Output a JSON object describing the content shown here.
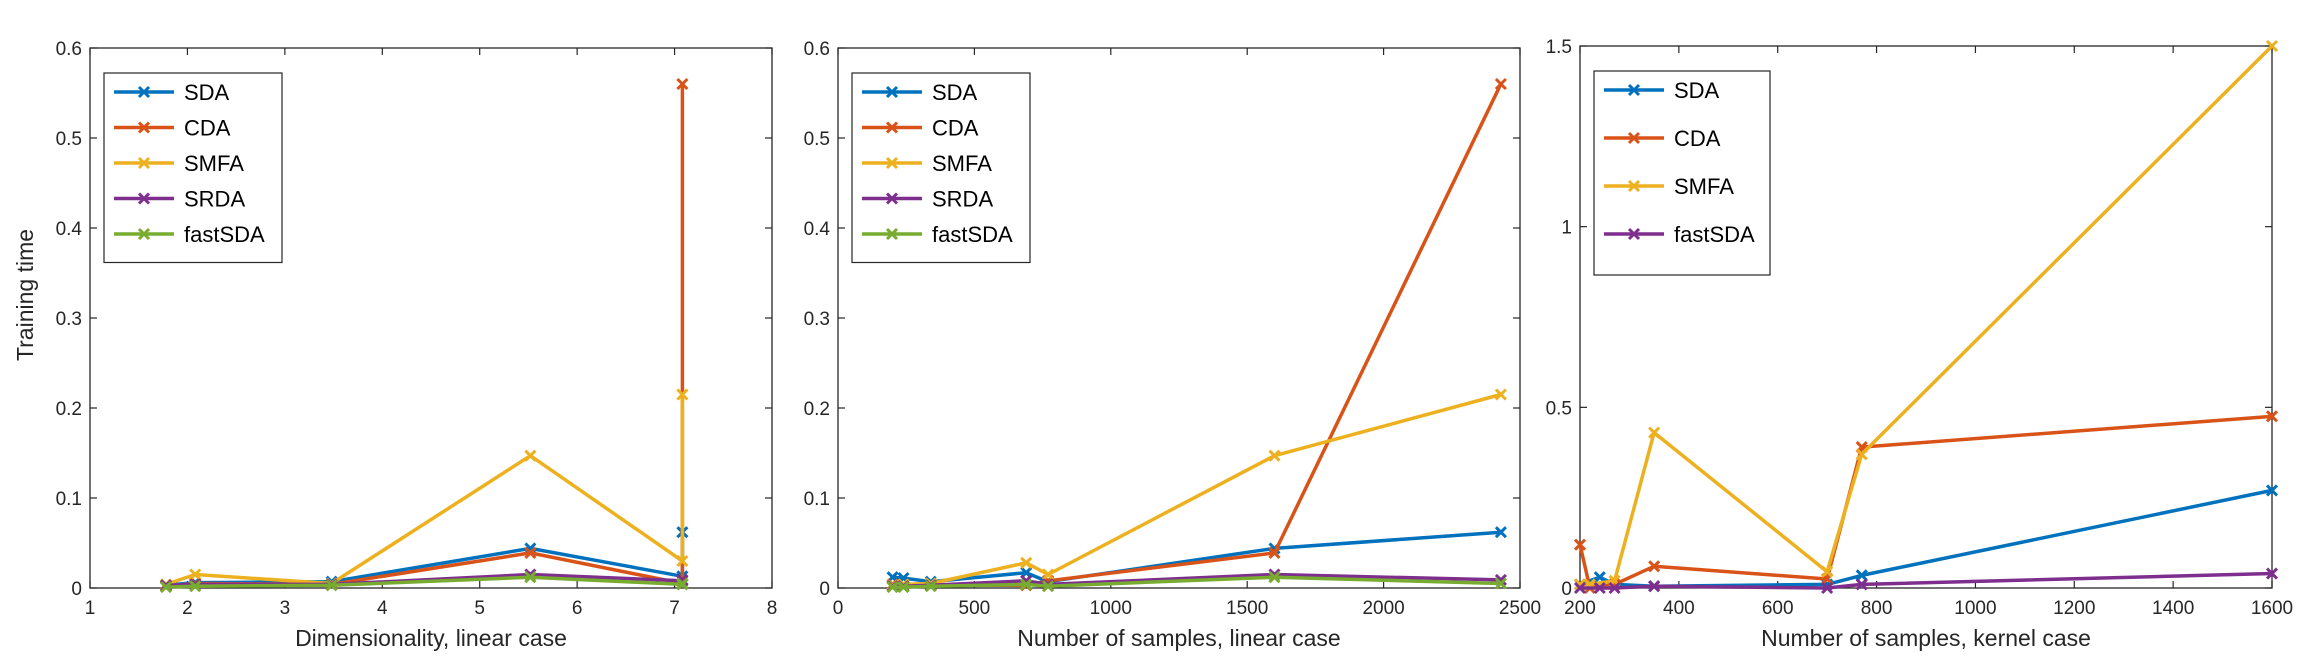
{
  "ylabel": "Training time",
  "chart_data": [
    {
      "type": "line",
      "title": "",
      "xlabel": "Dimensionality, linear case",
      "ylabel": "Training time",
      "xlim": [
        1,
        8
      ],
      "ylim": [
        0,
        0.6
      ],
      "xticks": [
        1,
        2,
        3,
        4,
        5,
        6,
        7,
        8
      ],
      "xtick_labels": [
        "1",
        "2",
        "3",
        "4",
        "5",
        "6",
        "7",
        "8"
      ],
      "yticks": [
        0,
        0.1,
        0.2,
        0.3,
        0.4,
        0.5,
        0.6
      ],
      "ytick_labels": [
        "0",
        "0.1",
        "0.2",
        "0.3",
        "0.4",
        "0.5",
        "0.6"
      ],
      "legend_position": "top-left",
      "series": [
        {
          "name": "SDA",
          "color": "#0072BD",
          "x": [
            1.78,
            2.08,
            3.48,
            5.52,
            7.08,
            7.08
          ],
          "y": [
            0.003,
            0.006,
            0.007,
            0.044,
            0.013,
            0.062
          ]
        },
        {
          "name": "CDA",
          "color": "#D95319",
          "x": [
            1.78,
            2.08,
            3.48,
            5.52,
            7.08,
            7.08
          ],
          "y": [
            0.002,
            0.005,
            0.004,
            0.039,
            0.005,
            0.56
          ]
        },
        {
          "name": "SMFA",
          "color": "#EDB120",
          "x": [
            1.78,
            2.08,
            3.48,
            5.52,
            7.08,
            7.08
          ],
          "y": [
            0.004,
            0.015,
            0.005,
            0.147,
            0.03,
            0.215
          ]
        },
        {
          "name": "SRDA",
          "color": "#7E2F8E",
          "x": [
            1.78,
            2.08,
            3.48,
            5.52,
            7.08,
            7.08
          ],
          "y": [
            0.003,
            0.004,
            0.004,
            0.015,
            0.008,
            0.009
          ]
        },
        {
          "name": "fastSDA",
          "color": "#77AC30",
          "x": [
            1.78,
            2.08,
            3.48,
            5.52,
            7.08,
            7.08
          ],
          "y": [
            0.001,
            0.002,
            0.003,
            0.012,
            0.004,
            0.005
          ]
        }
      ]
    },
    {
      "type": "line",
      "title": "",
      "xlabel": "Number of samples, linear case",
      "ylabel": "",
      "xlim": [
        0,
        2500
      ],
      "ylim": [
        0,
        0.6
      ],
      "xticks": [
        0,
        500,
        1000,
        1500,
        2000,
        2500
      ],
      "xtick_labels": [
        "0",
        "500",
        "1000",
        "1500",
        "2000",
        "2500"
      ],
      "yticks": [
        0,
        0.1,
        0.2,
        0.3,
        0.4,
        0.5,
        0.6
      ],
      "ytick_labels": [
        "0",
        "0.1",
        "0.2",
        "0.3",
        "0.4",
        "0.5",
        "0.6"
      ],
      "legend_position": "top-left",
      "series": [
        {
          "name": "SDA",
          "color": "#0072BD",
          "x": [
            200,
            240,
            340,
            690,
            770,
            1600,
            2430
          ],
          "y": [
            0.012,
            0.011,
            0.007,
            0.017,
            0.007,
            0.044,
            0.062
          ]
        },
        {
          "name": "CDA",
          "color": "#D95319",
          "x": [
            200,
            240,
            340,
            690,
            770,
            1600,
            2430
          ],
          "y": [
            0.004,
            0.004,
            0.003,
            0.003,
            0.008,
            0.039,
            0.56
          ]
        },
        {
          "name": "SMFA",
          "color": "#EDB120",
          "x": [
            200,
            240,
            340,
            690,
            770,
            1600,
            2430
          ],
          "y": [
            0.003,
            0.004,
            0.005,
            0.028,
            0.015,
            0.147,
            0.215
          ]
        },
        {
          "name": "SRDA",
          "color": "#7E2F8E",
          "x": [
            200,
            240,
            340,
            690,
            770,
            1600,
            2430
          ],
          "y": [
            0.002,
            0.002,
            0.003,
            0.008,
            0.004,
            0.015,
            0.009
          ]
        },
        {
          "name": "fastSDA",
          "color": "#77AC30",
          "x": [
            200,
            240,
            340,
            690,
            770,
            1600,
            2430
          ],
          "y": [
            0.001,
            0.001,
            0.002,
            0.004,
            0.002,
            0.012,
            0.005
          ]
        }
      ]
    },
    {
      "type": "line",
      "title": "",
      "xlabel": "Number of samples, kernel case",
      "ylabel": "",
      "xlim": [
        200,
        1600
      ],
      "ylim": [
        0,
        1.5
      ],
      "xticks": [
        200,
        400,
        600,
        800,
        1000,
        1200,
        1400,
        1600
      ],
      "xtick_labels": [
        "200",
        "400",
        "600",
        "800",
        "1000",
        "1200",
        "1400",
        "1600"
      ],
      "yticks": [
        0,
        0.5,
        1,
        1.5
      ],
      "ytick_labels": [
        "0",
        "0.5",
        "1",
        "1.5"
      ],
      "legend_position": "top-left",
      "series": [
        {
          "name": "SDA",
          "color": "#0072BD",
          "x": [
            200,
            240,
            270,
            350,
            700,
            770,
            1600
          ],
          "y": [
            0.01,
            0.03,
            0.01,
            0.005,
            0.01,
            0.035,
            0.27
          ]
        },
        {
          "name": "CDA",
          "color": "#D95319",
          "x": [
            200,
            220,
            270,
            350,
            700,
            770,
            1600
          ],
          "y": [
            0.12,
            0.0,
            0.01,
            0.06,
            0.025,
            0.39,
            0.475
          ]
        },
        {
          "name": "SMFA",
          "color": "#EDB120",
          "x": [
            200,
            220,
            270,
            350,
            700,
            770,
            1600
          ],
          "y": [
            0.01,
            0.01,
            0.02,
            0.43,
            0.045,
            0.37,
            1.5
          ]
        },
        {
          "name": "fastSDA",
          "color": "#7E2F8E",
          "x": [
            200,
            240,
            270,
            350,
            700,
            770,
            1600
          ],
          "y": [
            0.0,
            0.0,
            0.0,
            0.005,
            0.0,
            0.01,
            0.04
          ]
        }
      ]
    }
  ]
}
